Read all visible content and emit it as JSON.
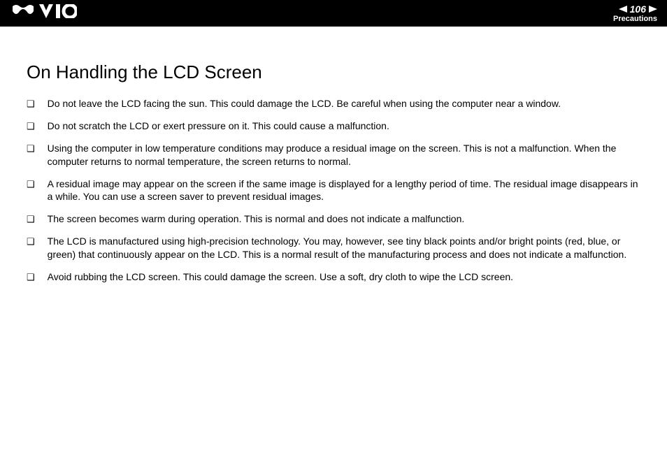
{
  "header": {
    "logo_svg_color": "#ffffff",
    "page_number": "106",
    "section": "Precautions",
    "arrow_color": "#ffffff",
    "bg_color": "#000000"
  },
  "content": {
    "title": "On Handling the LCD Screen",
    "bullet_marker": "❑",
    "items": [
      {
        "text": "Do not leave the LCD facing the sun. This could damage the LCD. Be careful when using the computer near a window."
      },
      {
        "text": "Do not scratch the LCD or exert pressure on it. This could cause a malfunction."
      },
      {
        "text": "Using the computer in low temperature conditions may produce a residual image on the screen. This is not a malfunction. When the computer returns to normal temperature, the screen returns to normal."
      },
      {
        "text": "A residual image may appear on the screen if the same image is displayed for a lengthy period of time. The residual image disappears in a while. You can use a screen saver to prevent residual images."
      },
      {
        "text": "The screen becomes warm during operation. This is normal and does not indicate a malfunction."
      },
      {
        "text": "The LCD is manufactured using high-precision technology. You may, however, see tiny black points and/or bright points (red, blue, or green) that continuously appear on the LCD. This is a normal result of the manufacturing process and does not indicate a malfunction."
      },
      {
        "text": "Avoid rubbing the LCD screen. This could damage the screen. Use a soft, dry cloth to wipe the LCD screen."
      }
    ]
  },
  "styles": {
    "page_bg": "#ffffff",
    "text_color": "#000000",
    "title_fontsize": 26,
    "body_fontsize": 14
  }
}
